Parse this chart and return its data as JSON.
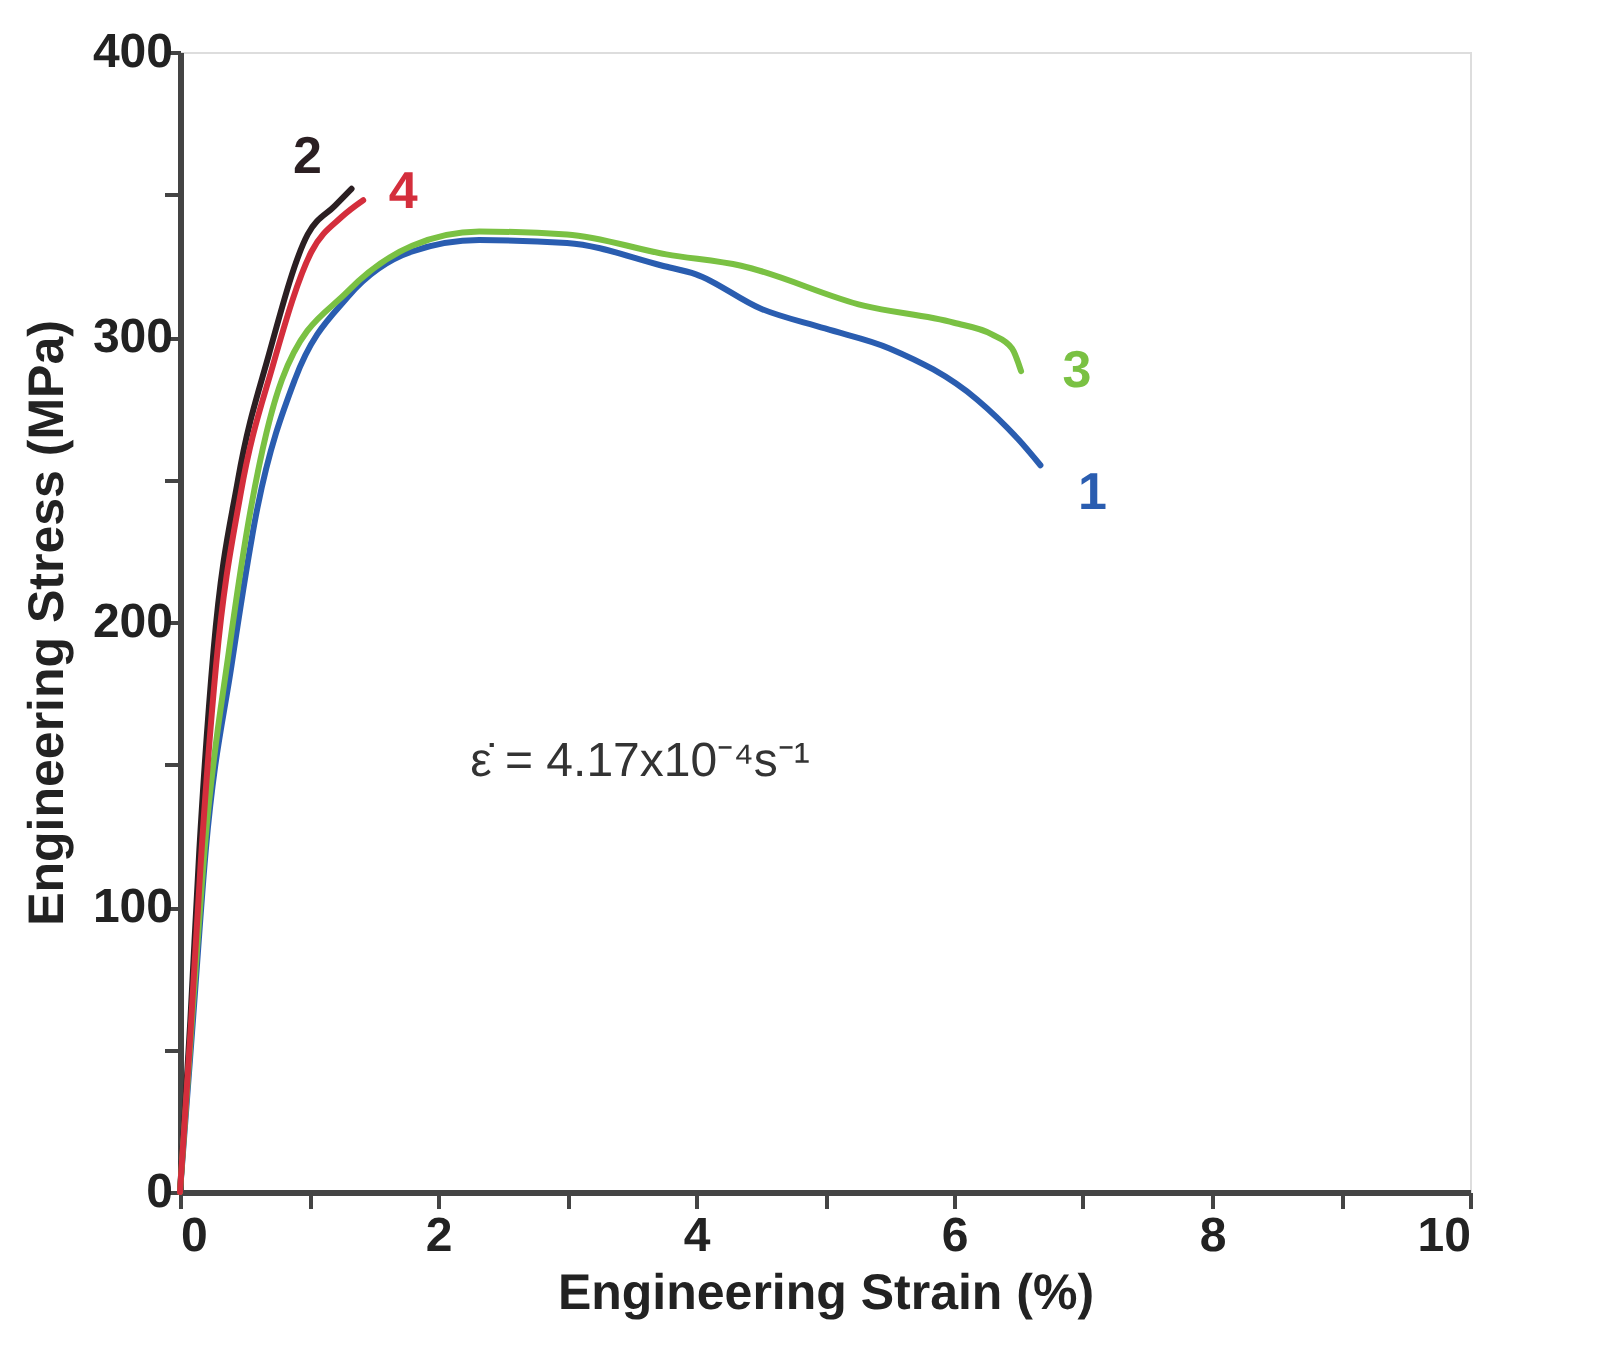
{
  "chart_data": {
    "type": "line",
    "xlabel": "Engineering Strain (%)",
    "ylabel": "Engineering Stress (MPa)",
    "xlim": [
      0,
      10
    ],
    "ylim": [
      0,
      400
    ],
    "xticks": [
      0,
      {
        "value": 1,
        "label": null
      },
      2,
      {
        "value": 3,
        "label": null
      },
      4,
      {
        "value": 5,
        "label": null
      },
      6,
      {
        "value": 7,
        "label": null
      },
      8,
      {
        "value": 9,
        "label": null
      },
      10
    ],
    "yticks": [
      0,
      {
        "value": 50,
        "label": null
      },
      100,
      {
        "value": 150,
        "label": null
      },
      200,
      {
        "value": 250,
        "label": null
      },
      300,
      {
        "value": 350,
        "label": null
      },
      400
    ],
    "grid": false,
    "legend": false,
    "marker": "none",
    "line_style": "solid",
    "annotations": [
      "ε̇ = 4.17x10⁻⁴s⁻¹"
    ],
    "series": [
      {
        "name": "1",
        "color": "#2a5db0",
        "x": [
          0,
          0.1,
          0.2,
          0.4,
          0.6,
          0.89,
          1.3,
          1.8,
          2.32,
          3.0,
          3.74,
          4.0,
          4.5,
          5.0,
          5.5,
          6.18,
          6.5,
          6.67
        ],
        "values": [
          0,
          60,
          120,
          185,
          240,
          285,
          314,
          330,
          334,
          333,
          325,
          322,
          310,
          303,
          296,
          278,
          264,
          255
        ]
      },
      {
        "name": "2",
        "color": "#2b1f22",
        "x": [
          0,
          0.08,
          0.15,
          0.26,
          0.45,
          0.69,
          0.99,
          1.2,
          1.33
        ],
        "values": [
          0,
          60,
          120,
          190,
          250,
          294,
          336,
          346,
          352
        ]
      },
      {
        "name": "3",
        "color": "#7ac143",
        "x": [
          0,
          0.1,
          0.2,
          0.38,
          0.55,
          0.79,
          1.3,
          1.8,
          2.32,
          3.0,
          3.77,
          4.35,
          5.3,
          6.0,
          6.29,
          6.45,
          6.52
        ],
        "values": [
          0,
          65,
          125,
          190,
          240,
          285,
          316,
          332,
          337,
          336,
          329,
          325,
          311,
          305,
          301,
          296,
          288
        ]
      },
      {
        "name": "4",
        "color": "#d42e3c",
        "x": [
          0,
          0.08,
          0.16,
          0.28,
          0.47,
          0.72,
          1.02,
          1.25,
          1.42
        ],
        "values": [
          0,
          55,
          115,
          185,
          245,
          290,
          330,
          342,
          348
        ]
      }
    ]
  }
}
